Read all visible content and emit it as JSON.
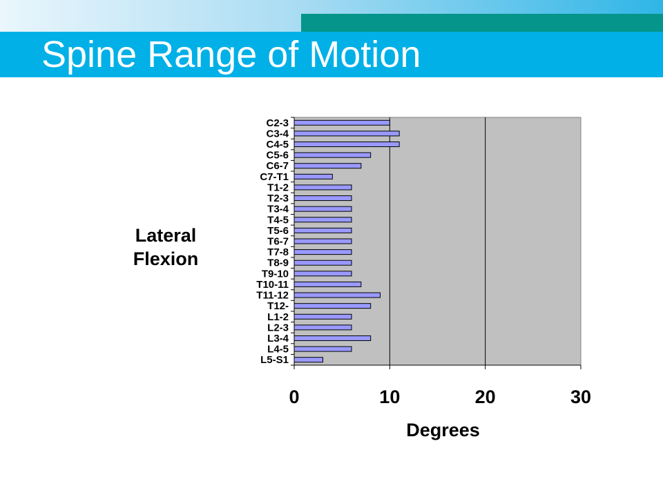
{
  "slide": {
    "title": "Spine Range of Motion"
  },
  "side_label": {
    "line1": "Lateral",
    "line2": "Flexion"
  },
  "chart_data": {
    "type": "bar",
    "orientation": "horizontal",
    "title": "",
    "xlabel": "Degrees",
    "ylabel": "",
    "xlim": [
      0,
      30
    ],
    "x_ticks": [
      0,
      10,
      20,
      30
    ],
    "grid": true,
    "legend": "none",
    "bar_color": "#9999ff",
    "plot_bg": "#c0c0c0",
    "categories": [
      "C2-3",
      "C3-4",
      "C4-5",
      "C5-6",
      "C6-7",
      "C7-T1",
      "T1-2",
      "T2-3",
      "T3-4",
      "T4-5",
      "T5-6",
      "T6-7",
      "T7-8",
      "T8-9",
      "T9-10",
      "T10-11",
      "T11-12",
      "T12-",
      "L1-2",
      "L2-3",
      "L3-4",
      "L4-5",
      "L5-S1"
    ],
    "values": [
      10,
      11,
      11,
      8,
      7,
      4,
      6,
      6,
      6,
      6,
      6,
      6,
      6,
      6,
      6,
      7,
      9,
      8,
      6,
      6,
      8,
      6,
      3
    ]
  }
}
